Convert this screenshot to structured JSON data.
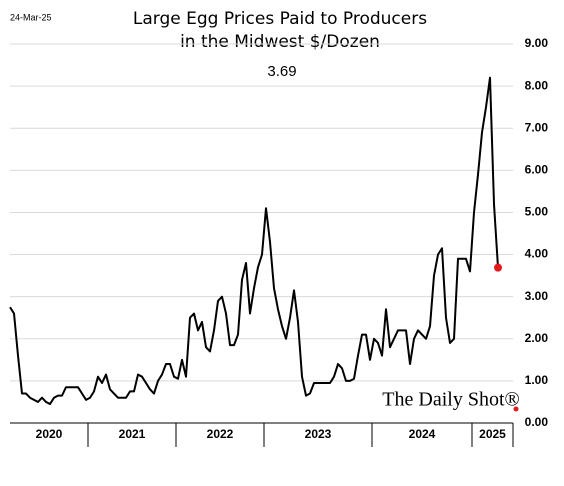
{
  "chart_data": {
    "type": "line",
    "title": [
      "Large Egg Prices Paid to Producers",
      "in the Midwest $/Dozen"
    ],
    "date": "24-Mar-25",
    "annotation": "3.69",
    "source": "The Daily Shot®",
    "color": "#000000",
    "last_point_color": "#e31a1c",
    "grid": true,
    "ylim": [
      0,
      9
    ],
    "yticks": [
      {
        "value": 0,
        "label": "0.00"
      },
      {
        "value": 1,
        "label": "1.00"
      },
      {
        "value": 2,
        "label": "2.00"
      },
      {
        "value": 3,
        "label": "3.00"
      },
      {
        "value": 4,
        "label": "4.00"
      },
      {
        "value": 5,
        "label": "5.00"
      },
      {
        "value": 6,
        "label": "6.00"
      },
      {
        "value": 7,
        "label": "7.00"
      },
      {
        "value": 8,
        "label": "8.00"
      },
      {
        "value": 9,
        "label": "9.00"
      }
    ],
    "categories": [
      "2020",
      null,
      null,
      null,
      null,
      null,
      null,
      null,
      null,
      null,
      null,
      null,
      null,
      null,
      null,
      null,
      null,
      null,
      null,
      null,
      "2021",
      null,
      null,
      null,
      null,
      null,
      null,
      null,
      null,
      null,
      null,
      null,
      null,
      null,
      null,
      null,
      null,
      null,
      null,
      null,
      null,
      null,
      "2022",
      null,
      null,
      null,
      null,
      null,
      null,
      null,
      null,
      null,
      null,
      null,
      null,
      null,
      null,
      null,
      null,
      null,
      null,
      null,
      null,
      null,
      "2023",
      null,
      null,
      null,
      null,
      null,
      null,
      null,
      null,
      null,
      null,
      null,
      null,
      null,
      null,
      null,
      null,
      null,
      null,
      null,
      null,
      null,
      null,
      null,
      null,
      null,
      null,
      "2024",
      null,
      null,
      null,
      null,
      null,
      null,
      null,
      null,
      null,
      null,
      null,
      null,
      null,
      null,
      null,
      null,
      null,
      null,
      null,
      null,
      null,
      null,
      null,
      null,
      "2025",
      null,
      null,
      null,
      null,
      null,
      null
    ],
    "values": [
      2.75,
      2.6,
      1.6,
      0.7,
      0.7,
      0.6,
      0.55,
      0.5,
      0.6,
      0.5,
      0.45,
      0.6,
      0.65,
      0.65,
      0.85,
      0.85,
      0.85,
      0.85,
      0.7,
      0.55,
      0.6,
      0.75,
      1.1,
      0.95,
      1.15,
      0.8,
      0.7,
      0.6,
      0.6,
      0.6,
      0.75,
      0.75,
      1.15,
      1.1,
      0.95,
      0.8,
      0.7,
      1.0,
      1.15,
      1.4,
      1.4,
      1.1,
      1.05,
      1.5,
      1.1,
      2.5,
      2.6,
      2.2,
      2.4,
      1.8,
      1.7,
      2.2,
      2.9,
      3.0,
      2.6,
      1.85,
      1.85,
      2.1,
      3.4,
      3.8,
      2.6,
      3.2,
      3.7,
      4.0,
      5.1,
      4.3,
      3.2,
      2.7,
      2.3,
      2.0,
      2.5,
      3.15,
      2.4,
      1.1,
      0.65,
      0.7,
      0.95,
      0.95,
      0.95,
      0.95,
      0.95,
      1.1,
      1.4,
      1.3,
      1.0,
      1.0,
      1.05,
      1.6,
      2.1,
      2.1,
      1.5,
      2.0,
      1.9,
      1.6,
      2.7,
      1.8,
      2.0,
      2.2,
      2.2,
      2.2,
      1.4,
      2.0,
      2.2,
      2.1,
      2.0,
      2.3,
      3.5,
      4.0,
      4.15,
      2.5,
      1.9,
      2.0,
      3.9,
      3.9,
      3.9,
      3.6,
      5.0,
      5.9,
      6.9,
      7.5,
      8.2,
      5.2,
      3.69
    ]
  }
}
